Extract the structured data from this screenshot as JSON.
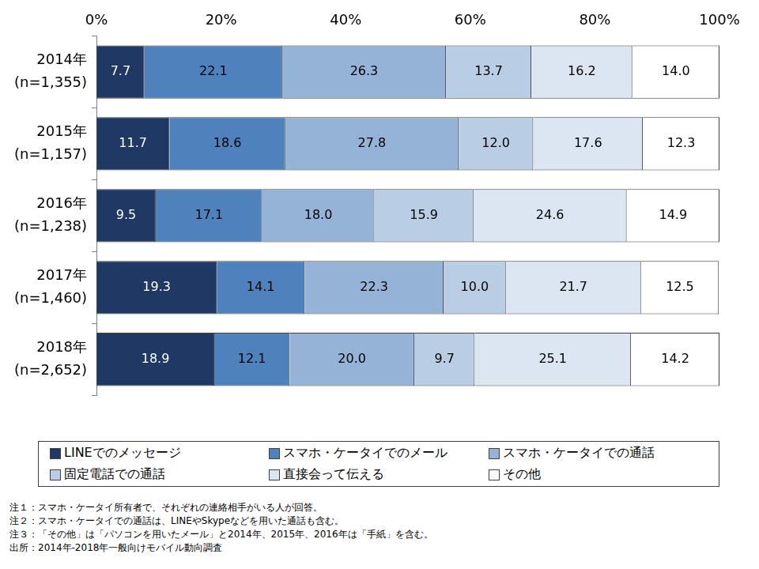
{
  "chart_data": {
    "type": "bar",
    "orientation": "horizontal",
    "stacked": true,
    "data_labels": true,
    "grid": false,
    "legend": "bottom",
    "categories": [
      "2014年\n(n=1,355)",
      "2015年\n(n=1,157)",
      "2016年\n(n=1,238)",
      "2017年\n(n=1,460)",
      "2018年\n(n=2,652)"
    ],
    "xlim": [
      0,
      100
    ],
    "xticks": [
      {
        "value": 0,
        "label": "0%"
      },
      {
        "value": 20,
        "label": "20%"
      },
      {
        "value": 40,
        "label": "40%"
      },
      {
        "value": 60,
        "label": "60%"
      },
      {
        "value": 80,
        "label": "80%"
      },
      {
        "value": 100,
        "label": "100%"
      }
    ],
    "series": [
      {
        "name": "LINEでのメッセージ",
        "color": "#203864",
        "values": [
          7.7,
          11.7,
          9.5,
          19.3,
          18.9
        ],
        "value_labels": [
          "7.7",
          "11.7",
          "9.5",
          "19.3",
          "18.9"
        ]
      },
      {
        "name": "スマホ・ケータイでのメール",
        "color": "#4f81bd",
        "values": [
          22.1,
          18.6,
          17.1,
          14.1,
          12.1
        ],
        "value_labels": [
          "22.1",
          "18.6",
          "17.1",
          "14.1",
          "12.1"
        ]
      },
      {
        "name": "スマホ・ケータイでの通話",
        "color": "#95b3d7",
        "values": [
          26.3,
          27.8,
          18.0,
          22.3,
          20.0
        ],
        "value_labels": [
          "26.3",
          "27.8",
          "18.0",
          "22.3",
          "20.0"
        ]
      },
      {
        "name": "固定電話での通話",
        "color": "#b9cde5",
        "values": [
          13.7,
          12.0,
          15.9,
          10.0,
          9.7
        ],
        "value_labels": [
          "13.7",
          "12.0",
          "15.9",
          "10.0",
          "9.7"
        ]
      },
      {
        "name": "直接会って伝える",
        "color": "#dce6f2",
        "values": [
          16.2,
          17.6,
          24.6,
          21.7,
          25.1
        ],
        "value_labels": [
          "16.2",
          "17.6",
          "24.6",
          "21.7",
          "25.1"
        ]
      },
      {
        "name": "その他",
        "color": "#ffffff",
        "values": [
          14.0,
          12.3,
          14.9,
          12.5,
          14.2
        ],
        "value_labels": [
          "14.0",
          "12.3",
          "14.9",
          "12.5",
          "14.2"
        ]
      }
    ],
    "notes": [
      "注１：スマホ・ケータイ所有者で、それぞれの連絡相手がいる人が回答。",
      "注２：スマホ・ケータイでの通話は、LINEやSkypeなどを用いた通話も含む。",
      "注３：「その他」は「パソコンを用いたメール」と2014年、2015年、2016年は「手紙」を含む。",
      "出所：2014年-2018年一般向けモバイル動向調査"
    ]
  }
}
